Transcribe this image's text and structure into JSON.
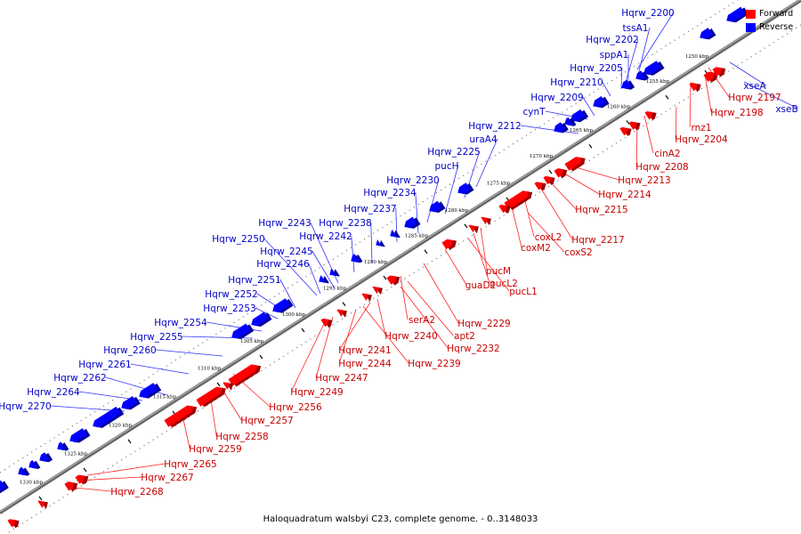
{
  "caption": "Haloquadratum walsbyi C23, complete genome. - 0..3148033",
  "legend": {
    "forward": {
      "label": "Forward",
      "color": "#ff0000"
    },
    "reverse": {
      "label": "Reverse",
      "color": "#0000ff"
    }
  },
  "colors": {
    "forward": "#ff0000",
    "reverse": "#0000ff",
    "backbone": "#999999"
  },
  "ticks": [
    {
      "label": "1250 kbp"
    },
    {
      "label": "1255 kbp"
    },
    {
      "label": "1260 kbp"
    },
    {
      "label": "1265 kbp"
    },
    {
      "label": "1270 kbp"
    },
    {
      "label": "1275 kbp"
    },
    {
      "label": "1280 kbp"
    },
    {
      "label": "1285 kbp"
    },
    {
      "label": "1290 kbp"
    },
    {
      "label": "1295 kbp"
    },
    {
      "label": "1300 kbp"
    },
    {
      "label": "1305 kbp"
    },
    {
      "label": "1310 kbp"
    },
    {
      "label": "1315 kbp"
    },
    {
      "label": "1320 kbp"
    },
    {
      "label": "1325 kbp"
    },
    {
      "label": "1330 kbp"
    }
  ],
  "reverse_genes": [
    "Hqrw_2200",
    "tssA1",
    "Hqrw_2202",
    "sppA1",
    "Hqrw_2205",
    "Hqrw_2210",
    "Hqrw_2209",
    "cynT",
    "Hqrw_2212",
    "uraA4",
    "Hqrw_2225",
    "pucH",
    "Hqrw_2230",
    "Hqrw_2234",
    "Hqrw_2237",
    "Hqrw_2243",
    "Hqrw_2238",
    "Hqrw_2242",
    "Hqrw_2250",
    "Hqrw_2245",
    "Hqrw_2246",
    "Hqrw_2251",
    "Hqrw_2252",
    "Hqrw_2253",
    "Hqrw_2254",
    "Hqrw_2255",
    "Hqrw_2260",
    "Hqrw_2261",
    "Hqrw_2262",
    "Hqrw_2264",
    "Hqrw_2270",
    "xseA",
    "xseB"
  ],
  "forward_genes": [
    "Hqrw_2197",
    "Hqrw_2198",
    "rnz1",
    "Hqrw_2204",
    "cinA2",
    "Hqrw_2208",
    "Hqrw_2213",
    "Hqrw_2214",
    "Hqrw_2215",
    "Hqrw_2217",
    "coxL2",
    "coxM2",
    "coxS2",
    "pucM",
    "pucL2",
    "pucL1",
    "guaD1",
    "Hqrw_2229",
    "serA2",
    "apt2",
    "Hqrw_2232",
    "Hqrw_2240",
    "Hqrw_2241",
    "Hqrw_2239",
    "Hqrw_2244",
    "Hqrw_2247",
    "Hqrw_2249",
    "Hqrw_2256",
    "Hqrw_2257",
    "Hqrw_2258",
    "Hqrw_2259",
    "Hqrw_2265",
    "Hqrw_2267",
    "Hqrw_2268"
  ]
}
